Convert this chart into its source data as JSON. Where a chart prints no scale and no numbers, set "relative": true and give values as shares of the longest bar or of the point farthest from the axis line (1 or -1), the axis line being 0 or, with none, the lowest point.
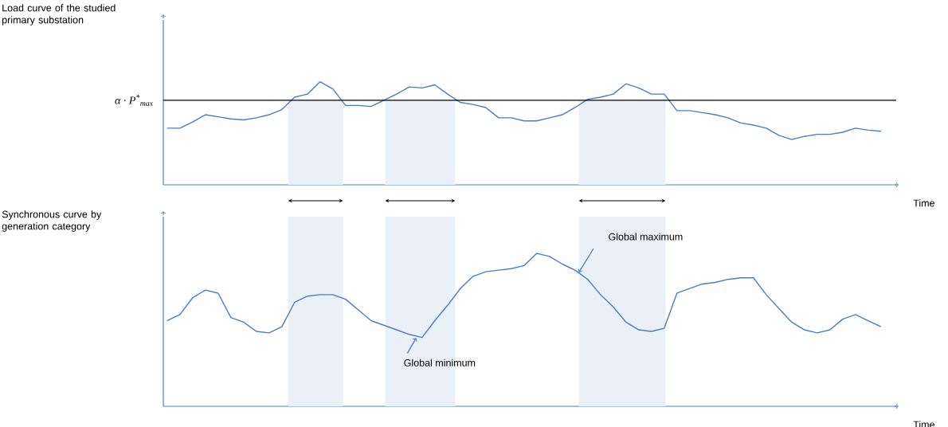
{
  "chart_data": [
    {
      "type": "line",
      "relative": true,
      "ylabel": "Load curve of the studied primary substation",
      "xlabel": "Time",
      "categories": [
        null,
        null,
        null,
        null,
        null,
        null,
        null,
        null,
        null,
        null,
        null,
        null,
        null,
        null,
        null,
        null,
        null,
        null,
        null,
        null,
        null,
        null,
        null,
        null,
        null,
        null,
        null,
        null,
        null,
        null,
        null,
        null,
        null,
        null,
        null,
        null,
        null,
        null,
        null,
        null,
        null,
        null,
        null,
        null,
        null,
        null,
        null,
        null,
        null,
        null,
        null,
        null,
        null,
        null,
        null,
        null,
        null
      ],
      "series": [
        {
          "color": "#4a7ebb",
          "values": [
            0.55,
            0.55,
            0.61,
            0.68,
            0.66,
            0.64,
            0.63,
            0.65,
            0.68,
            0.73,
            0.85,
            0.88,
            1.0,
            0.93,
            0.77,
            0.77,
            0.76,
            0.82,
            0.88,
            0.95,
            0.94,
            0.97,
            0.88,
            0.8,
            0.78,
            0.75,
            0.65,
            0.65,
            0.62,
            0.62,
            0.65,
            0.68,
            0.75,
            0.83,
            0.85,
            0.88,
            0.98,
            0.94,
            0.88,
            0.88,
            0.72,
            0.72,
            0.7,
            0.68,
            0.65,
            0.6,
            0.58,
            0.55,
            0.48,
            0.44,
            0.47,
            0.49,
            0.49,
            0.51,
            0.55,
            0.53,
            0.52
          ]
        }
      ],
      "ref_lines": [
        {
          "axis": "y",
          "value": 0.82,
          "label": "α · P$^{*}$$_{max}$",
          "color": "#000000"
        }
      ]
    },
    {
      "type": "line",
      "relative": true,
      "ylabel": "Synchronous curve by generation category",
      "xlabel": "Time",
      "categories": [
        null,
        null,
        null,
        null,
        null,
        null,
        null,
        null,
        null,
        null,
        null,
        null,
        null,
        null,
        null,
        null,
        null,
        null,
        null,
        null,
        null,
        null,
        null,
        null,
        null,
        null,
        null,
        null,
        null,
        null,
        null,
        null,
        null,
        null,
        null,
        null,
        null,
        null,
        null,
        null,
        null,
        null,
        null,
        null,
        null,
        null,
        null,
        null,
        null,
        null,
        null,
        null,
        null,
        null,
        null,
        null,
        null
      ],
      "series": [
        {
          "color": "#4a7ebb",
          "values": [
            0.56,
            0.6,
            0.71,
            0.76,
            0.74,
            0.58,
            0.55,
            0.49,
            0.48,
            0.52,
            0.68,
            0.72,
            0.73,
            0.73,
            0.7,
            0.63,
            0.56,
            0.53,
            0.5,
            0.47,
            0.45,
            0.56,
            0.66,
            0.77,
            0.85,
            0.88,
            0.89,
            0.9,
            0.92,
            1.0,
            0.98,
            0.93,
            0.89,
            0.83,
            0.73,
            0.65,
            0.55,
            0.5,
            0.49,
            0.51,
            0.74,
            0.77,
            0.8,
            0.81,
            0.83,
            0.84,
            0.84,
            0.73,
            0.64,
            0.55,
            0.5,
            0.48,
            0.5,
            0.57,
            0.6,
            0.56,
            0.52
          ]
        }
      ],
      "annotations": [
        "Global minimum",
        "Global maximum"
      ]
    }
  ]
}
